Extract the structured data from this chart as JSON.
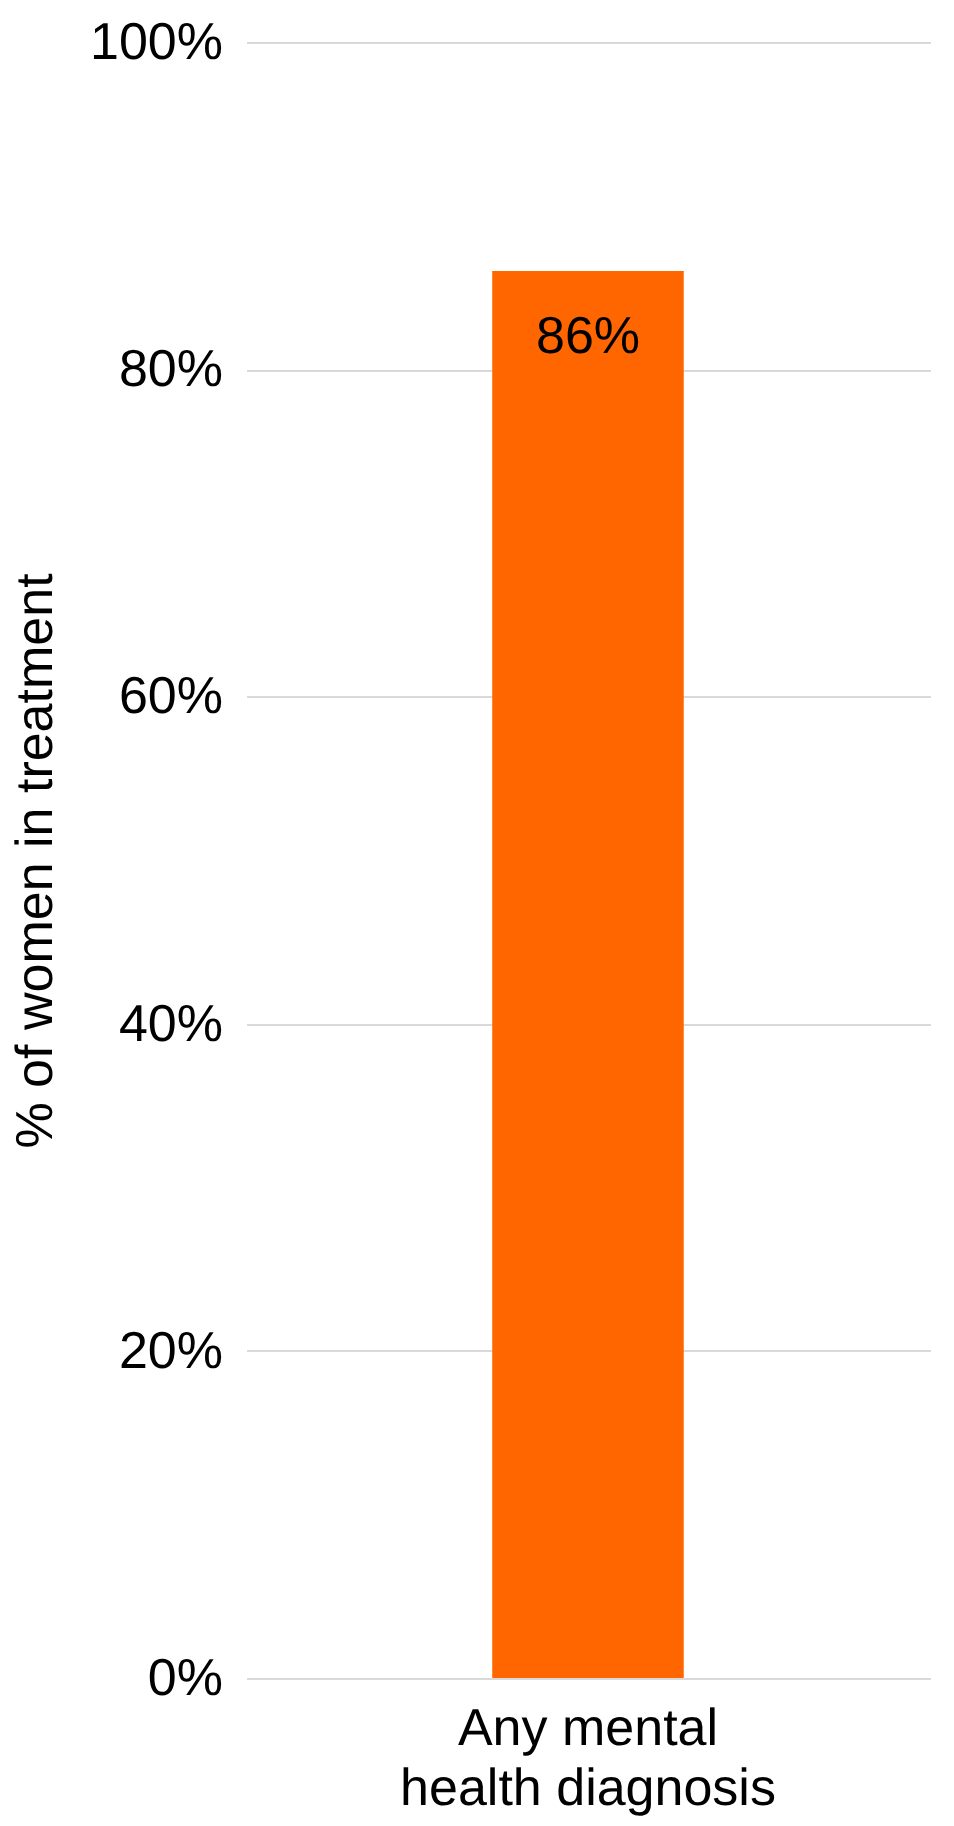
{
  "chart_data": {
    "type": "bar",
    "ylabel": "% of women in treatment",
    "categories": [
      "Any mental health diagnosis"
    ],
    "values": [
      86
    ],
    "value_labels": [
      "86%"
    ],
    "color": "#ff6600",
    "ylim": [
      0,
      100
    ],
    "yticks": [
      {
        "value": 0,
        "label": "0%"
      },
      {
        "value": 20,
        "label": "20%"
      },
      {
        "value": 40,
        "label": "40%"
      },
      {
        "value": 60,
        "label": "60%"
      },
      {
        "value": 80,
        "label": "80%"
      },
      {
        "value": 100,
        "label": "100%"
      }
    ],
    "grid": true
  }
}
